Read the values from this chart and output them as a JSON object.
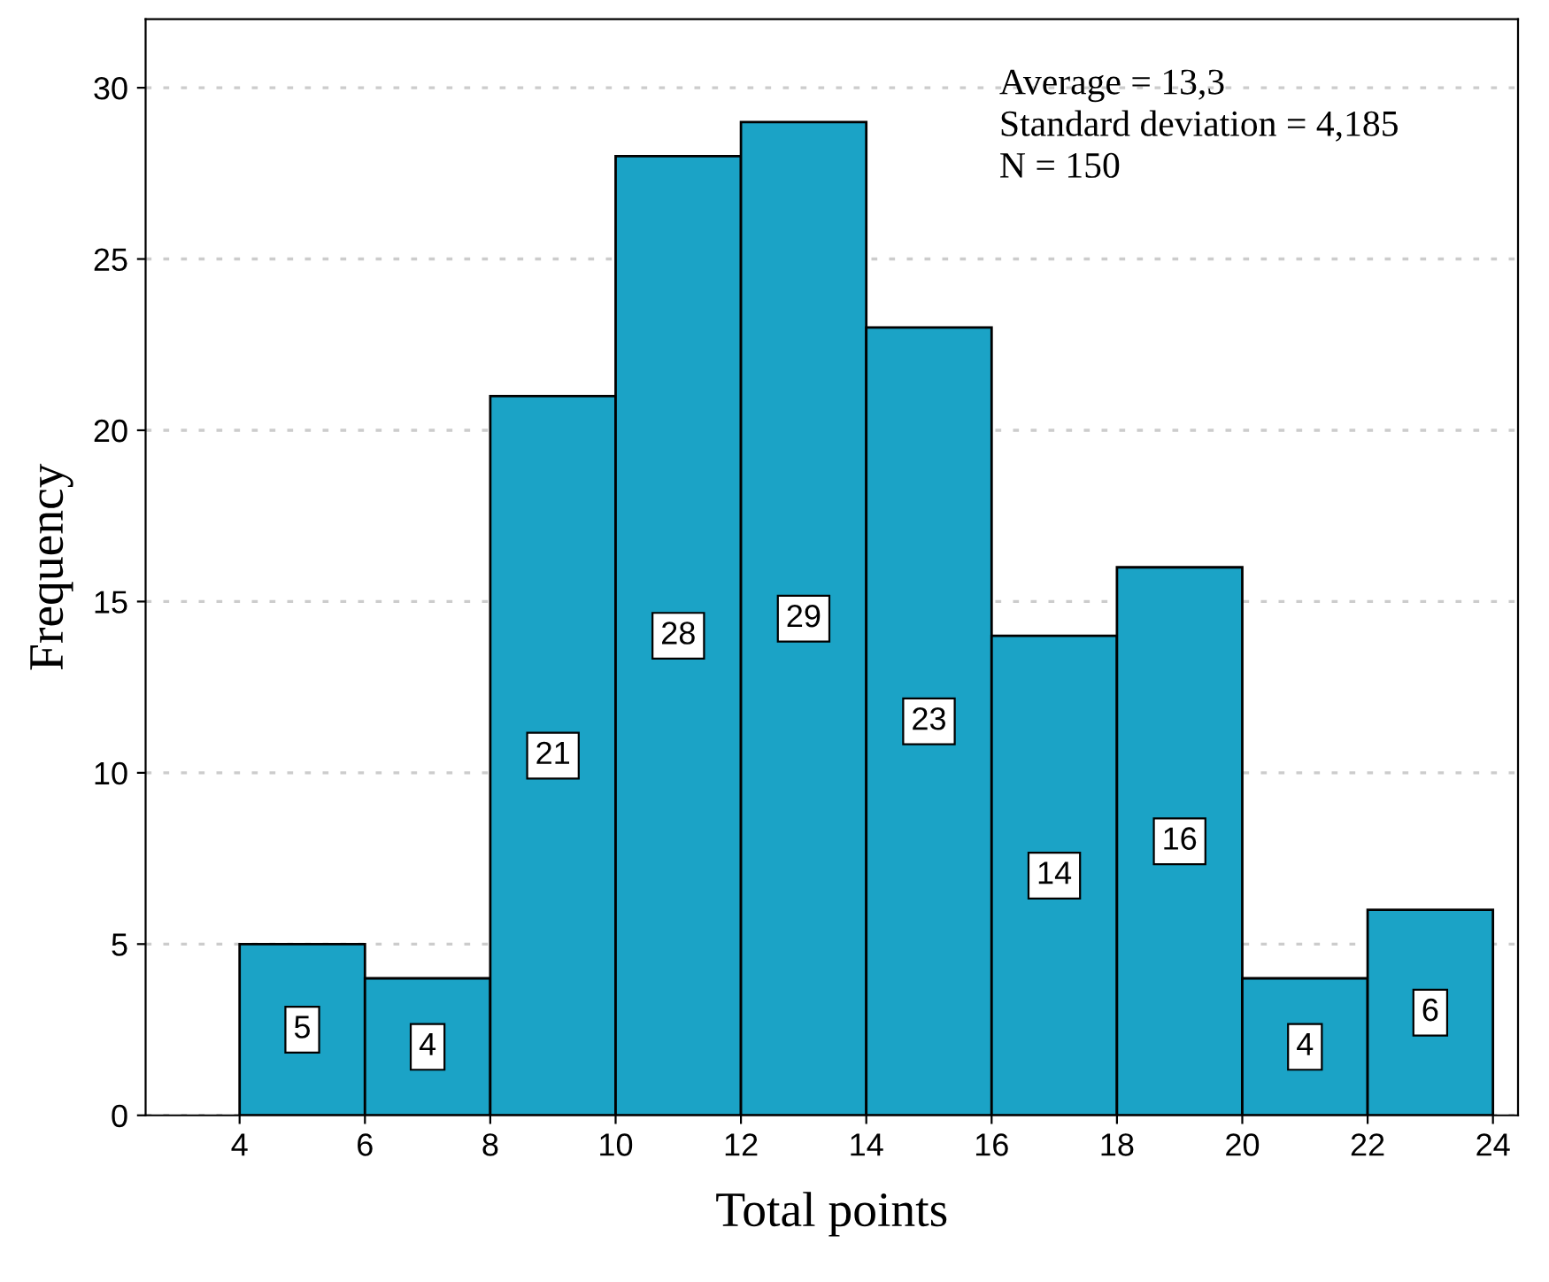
{
  "chart_data": {
    "type": "histogram",
    "xlabel": "Total points",
    "ylabel": "Frequency",
    "bins": [
      4,
      6,
      8,
      10,
      12,
      14,
      16,
      18,
      20,
      22,
      24
    ],
    "values": [
      5,
      4,
      21,
      28,
      29,
      23,
      14,
      16,
      4,
      6
    ],
    "color": "#1ba3c6",
    "xlim": [
      2.5,
      24.4
    ],
    "ylim": [
      0,
      32
    ],
    "xticks": [
      4,
      6,
      8,
      10,
      12,
      14,
      16,
      18,
      20,
      22,
      24
    ],
    "yticks": [
      0,
      5,
      10,
      15,
      20,
      25,
      30
    ],
    "grid": "y",
    "data_labels": true,
    "annotations": [
      "Average = 13,3",
      "Standard deviation = 4,185",
      "N = 150"
    ]
  }
}
